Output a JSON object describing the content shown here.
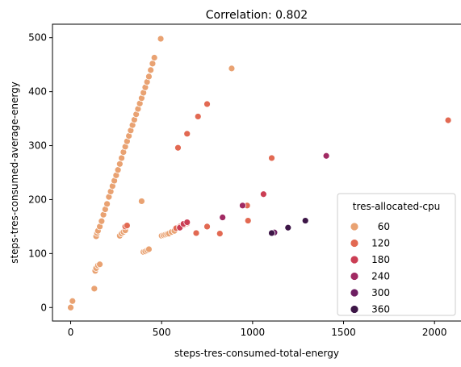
{
  "chart_data": {
    "type": "scatter",
    "title": "Correlation: 0.802",
    "xlabel": "steps-tres-consumed-total-energy",
    "ylabel": "steps-tres-consumed-average-energy",
    "xlim": [
      -100,
      2150
    ],
    "ylim": [
      -25,
      525
    ],
    "xticks": [
      0,
      500,
      1000,
      1500,
      2000
    ],
    "yticks": [
      0,
      100,
      200,
      300,
      400,
      500
    ],
    "grid": false,
    "legend": {
      "title": "tres-allocated-cpu",
      "placement": "lower-right",
      "entries": [
        {
          "label": "60",
          "color": "#e9a272"
        },
        {
          "label": "120",
          "color": "#e26952"
        },
        {
          "label": "180",
          "color": "#cb3e54"
        },
        {
          "label": "240",
          "color": "#a12a63"
        },
        {
          "label": "300",
          "color": "#6e1f62"
        },
        {
          "label": "360",
          "color": "#3d1647"
        }
      ]
    },
    "series": [
      {
        "name": "60",
        "color": "#e9a272",
        "points": [
          [
            0,
            0
          ],
          [
            10,
            12
          ],
          [
            130,
            35
          ],
          [
            135,
            68
          ],
          [
            140,
            73
          ],
          [
            150,
            78
          ],
          [
            160,
            80
          ],
          [
            140,
            132
          ],
          [
            145,
            138
          ],
          [
            150,
            142
          ],
          [
            160,
            150
          ],
          [
            170,
            160
          ],
          [
            180,
            172
          ],
          [
            190,
            182
          ],
          [
            200,
            192
          ],
          [
            210,
            205
          ],
          [
            220,
            215
          ],
          [
            230,
            225
          ],
          [
            240,
            235
          ],
          [
            250,
            245
          ],
          [
            260,
            255
          ],
          [
            270,
            266
          ],
          [
            280,
            277
          ],
          [
            290,
            288
          ],
          [
            300,
            298
          ],
          [
            310,
            308
          ],
          [
            320,
            318
          ],
          [
            330,
            328
          ],
          [
            340,
            338
          ],
          [
            350,
            348
          ],
          [
            360,
            358
          ],
          [
            370,
            368
          ],
          [
            380,
            378
          ],
          [
            390,
            388
          ],
          [
            400,
            398
          ],
          [
            410,
            408
          ],
          [
            420,
            418
          ],
          [
            430,
            428
          ],
          [
            440,
            440
          ],
          [
            450,
            452
          ],
          [
            460,
            463
          ],
          [
            495,
            498
          ],
          [
            270,
            133
          ],
          [
            280,
            137
          ],
          [
            290,
            140
          ],
          [
            300,
            143
          ],
          [
            390,
            197
          ],
          [
            400,
            103
          ],
          [
            410,
            104
          ],
          [
            420,
            106
          ],
          [
            430,
            108
          ],
          [
            500,
            133
          ],
          [
            510,
            134
          ],
          [
            520,
            135
          ],
          [
            530,
            136
          ],
          [
            540,
            137
          ],
          [
            555,
            140
          ],
          [
            570,
            142
          ],
          [
            885,
            443
          ]
        ]
      },
      {
        "name": "120",
        "color": "#e26952",
        "points": [
          [
            590,
            296
          ],
          [
            640,
            322
          ],
          [
            700,
            354
          ],
          [
            750,
            377
          ],
          [
            1105,
            277
          ],
          [
            2075,
            347
          ],
          [
            300,
            150
          ],
          [
            310,
            152
          ],
          [
            580,
            147
          ],
          [
            600,
            150
          ],
          [
            620,
            153
          ],
          [
            640,
            156
          ],
          [
            690,
            138
          ],
          [
            750,
            150
          ],
          [
            820,
            137
          ],
          [
            975,
            161
          ],
          [
            970,
            189
          ]
        ]
      },
      {
        "name": "180",
        "color": "#cb3e54",
        "points": [
          [
            600,
            148
          ],
          [
            620,
            155
          ],
          [
            640,
            158
          ],
          [
            1060,
            210
          ]
        ]
      },
      {
        "name": "240",
        "color": "#a12a63",
        "points": [
          [
            835,
            167
          ],
          [
            945,
            189
          ],
          [
            1405,
            281
          ]
        ]
      },
      {
        "name": "300",
        "color": "#6e1f62",
        "points": [
          [
            1120,
            139
          ]
        ]
      },
      {
        "name": "360",
        "color": "#3d1647",
        "points": [
          [
            1105,
            138
          ],
          [
            1195,
            148
          ],
          [
            1290,
            161
          ]
        ]
      }
    ]
  }
}
